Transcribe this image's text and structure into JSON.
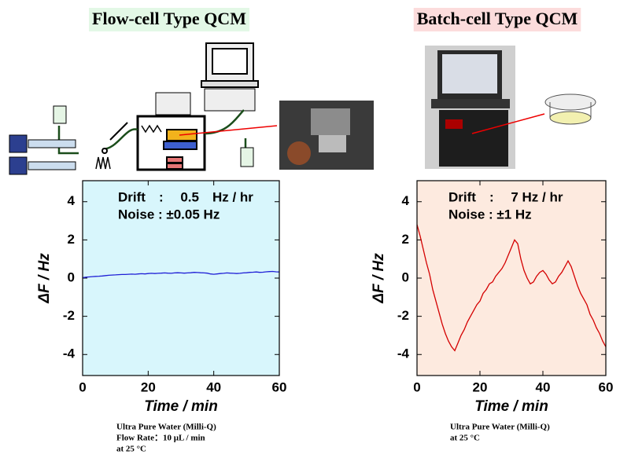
{
  "chart_data": [
    {
      "type": "line",
      "title": "Flow-cell Type QCM",
      "title_background": "#e3f8e6",
      "annotations": [
        "Drift　:　 0.5　Hz / hr",
        "Noise : ±0.05 Hz"
      ],
      "xlabel": "Time / min",
      "ylabel": "ΔF / Hz",
      "caption": [
        "Ultra Pure Water (Milli-Q)",
        "Flow Rate：10 µL / min",
        "at 25 °C"
      ],
      "plot_background": "#d8f6fc",
      "color": "#1f1fd6",
      "xlim": [
        0,
        60
      ],
      "ylim": [
        -5.1,
        5.1
      ],
      "xticks": [
        0,
        20,
        40,
        60
      ],
      "yticks": [
        -4,
        -2,
        0,
        2,
        4
      ],
      "x": [
        0,
        1,
        2,
        3,
        4,
        5,
        6,
        7,
        8,
        9,
        10,
        11,
        12,
        13,
        14,
        15,
        16,
        17,
        18,
        19,
        20,
        21,
        22,
        23,
        24,
        25,
        26,
        27,
        28,
        29,
        30,
        31,
        32,
        33,
        34,
        35,
        36,
        37,
        38,
        39,
        40,
        41,
        42,
        43,
        44,
        45,
        46,
        47,
        48,
        49,
        50,
        51,
        52,
        53,
        54,
        55,
        56,
        57,
        58,
        59,
        60
      ],
      "values": [
        0.02,
        0.05,
        0.06,
        0.08,
        0.09,
        0.1,
        0.11,
        0.13,
        0.15,
        0.16,
        0.17,
        0.18,
        0.19,
        0.19,
        0.2,
        0.21,
        0.2,
        0.22,
        0.23,
        0.22,
        0.24,
        0.25,
        0.24,
        0.25,
        0.26,
        0.27,
        0.26,
        0.25,
        0.27,
        0.28,
        0.27,
        0.26,
        0.27,
        0.28,
        0.3,
        0.29,
        0.28,
        0.27,
        0.26,
        0.22,
        0.2,
        0.22,
        0.24,
        0.25,
        0.27,
        0.26,
        0.25,
        0.24,
        0.25,
        0.27,
        0.28,
        0.3,
        0.31,
        0.32,
        0.3,
        0.31,
        0.33,
        0.34,
        0.35,
        0.33,
        0.32
      ]
    },
    {
      "type": "line",
      "title": "Batch-cell Type QCM",
      "title_background": "#fcdcdc",
      "annotations": [
        "Drift　:　 7 Hz / hr",
        "Noise : ±1 Hz"
      ],
      "xlabel": "Time / min",
      "ylabel": "ΔF / Hz",
      "caption": [
        "Ultra Pure Water (Milli-Q)",
        "at 25 °C"
      ],
      "plot_background": "#fdeadf",
      "color": "#d40000",
      "xlim": [
        0,
        60
      ],
      "ylim": [
        -5.1,
        5.1
      ],
      "xticks": [
        0,
        20,
        40,
        60
      ],
      "yticks": [
        -4,
        -2,
        0,
        2,
        4
      ],
      "x": [
        0,
        1,
        2,
        3,
        4,
        5,
        6,
        7,
        8,
        9,
        10,
        11,
        12,
        13,
        14,
        15,
        16,
        17,
        18,
        19,
        20,
        21,
        22,
        23,
        24,
        25,
        26,
        27,
        28,
        29,
        30,
        31,
        32,
        33,
        34,
        35,
        36,
        37,
        38,
        39,
        40,
        41,
        42,
        43,
        44,
        45,
        46,
        47,
        48,
        49,
        50,
        51,
        52,
        53,
        54,
        55,
        56,
        57,
        58,
        59,
        60
      ],
      "values": [
        2.8,
        2.2,
        1.5,
        0.8,
        0.2,
        -0.6,
        -1.2,
        -1.8,
        -2.4,
        -2.9,
        -3.3,
        -3.6,
        -3.8,
        -3.4,
        -3.0,
        -2.7,
        -2.3,
        -2.0,
        -1.7,
        -1.4,
        -1.2,
        -0.8,
        -0.6,
        -0.3,
        -0.2,
        0.1,
        0.3,
        0.5,
        0.8,
        1.2,
        1.6,
        2.0,
        1.8,
        1.0,
        0.4,
        0.0,
        -0.3,
        -0.2,
        0.1,
        0.3,
        0.4,
        0.2,
        -0.1,
        -0.3,
        -0.2,
        0.1,
        0.3,
        0.6,
        0.9,
        0.6,
        0.1,
        -0.4,
        -0.8,
        -1.1,
        -1.4,
        -1.9,
        -2.2,
        -2.6,
        -2.9,
        -3.3,
        -3.6
      ]
    }
  ]
}
